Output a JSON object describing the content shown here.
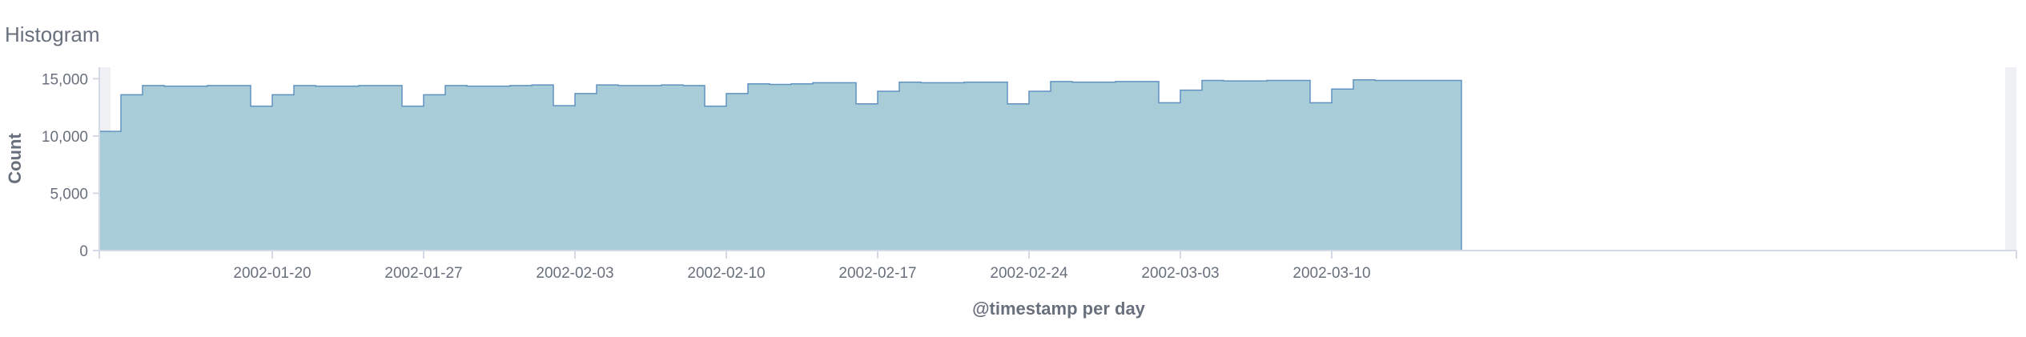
{
  "panel": {
    "title": "Histogram"
  },
  "chart_data": {
    "type": "area",
    "interpolation": "step",
    "xlabel": "@timestamp per day",
    "ylabel": "Count",
    "ylim": [
      0,
      16000
    ],
    "yticks": [
      0,
      5000,
      10000,
      15000
    ],
    "ytick_labels": [
      "0",
      "5,000",
      "10,000",
      "15,000"
    ],
    "xticks": [
      "2002-01-20",
      "2002-01-27",
      "2002-02-03",
      "2002-02-10",
      "2002-02-17",
      "2002-02-24",
      "2002-03-03",
      "2002-03-10"
    ],
    "grid": false,
    "legend": "none",
    "colors": {
      "fill": "#a8cdd9",
      "stroke": "#6092c0",
      "axis": "#d3dae6",
      "text": "#69707d",
      "band": "#eef0f3"
    },
    "x": [
      "2002-01-12",
      "2002-01-13",
      "2002-01-14",
      "2002-01-15",
      "2002-01-16",
      "2002-01-17",
      "2002-01-18",
      "2002-01-19",
      "2002-01-20",
      "2002-01-21",
      "2002-01-22",
      "2002-01-23",
      "2002-01-24",
      "2002-01-25",
      "2002-01-26",
      "2002-01-27",
      "2002-01-28",
      "2002-01-29",
      "2002-01-30",
      "2002-01-31",
      "2002-02-01",
      "2002-02-02",
      "2002-02-03",
      "2002-02-04",
      "2002-02-05",
      "2002-02-06",
      "2002-02-07",
      "2002-02-08",
      "2002-02-09",
      "2002-02-10",
      "2002-02-11",
      "2002-02-12",
      "2002-02-13",
      "2002-02-14",
      "2002-02-15",
      "2002-02-16",
      "2002-02-17",
      "2002-02-18",
      "2002-02-19",
      "2002-02-20",
      "2002-02-21",
      "2002-02-22",
      "2002-02-23",
      "2002-02-24",
      "2002-02-25",
      "2002-02-26",
      "2002-02-27",
      "2002-02-28",
      "2002-03-01",
      "2002-03-02",
      "2002-03-03",
      "2002-03-04",
      "2002-03-05",
      "2002-03-06",
      "2002-03-07",
      "2002-03-08",
      "2002-03-09",
      "2002-03-10",
      "2002-03-11",
      "2002-03-12",
      "2002-03-13",
      "2002-03-14",
      "2002-03-15"
    ],
    "values": [
      10400,
      13600,
      14400,
      14350,
      14350,
      14400,
      14400,
      12600,
      13600,
      14400,
      14350,
      14350,
      14400,
      14400,
      12600,
      13600,
      14400,
      14350,
      14350,
      14400,
      14450,
      12650,
      13700,
      14450,
      14400,
      14400,
      14450,
      14400,
      12600,
      13700,
      14550,
      14500,
      14550,
      14650,
      14650,
      12800,
      13900,
      14700,
      14650,
      14650,
      14700,
      14700,
      12800,
      13900,
      14750,
      14700,
      14700,
      14750,
      14750,
      12900,
      14000,
      14850,
      14800,
      14800,
      14850,
      14850,
      12900,
      14100,
      14900,
      14850,
      14850,
      14850,
      14850
    ]
  }
}
